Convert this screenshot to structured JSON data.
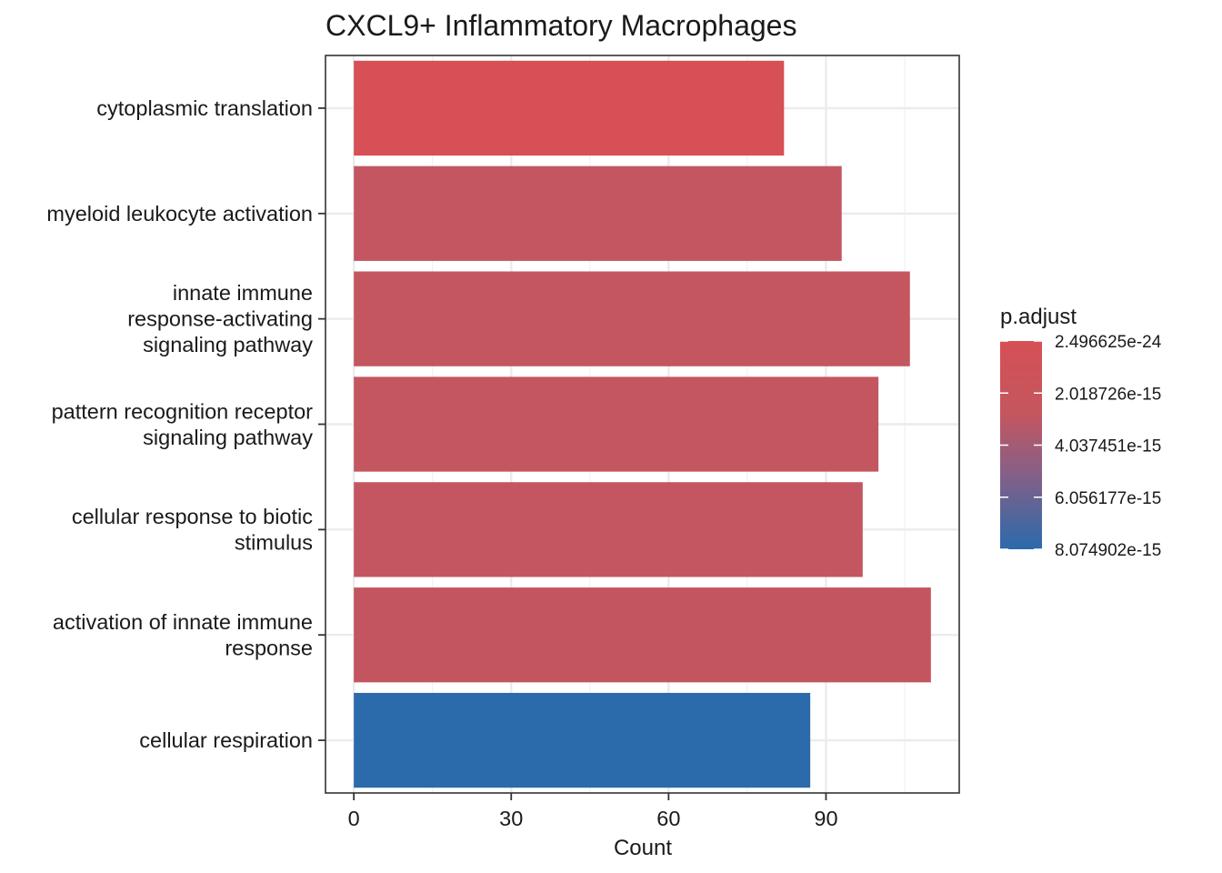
{
  "chart_data": {
    "type": "bar",
    "orientation": "horizontal",
    "title": "CXCL9+ Inflammatory Macrophages",
    "xlabel": "Count",
    "ylabel": "",
    "xlim": [
      -5.4,
      115.4
    ],
    "xticks": [
      0,
      30,
      60,
      90
    ],
    "grid": true,
    "categories": [
      [
        "cytoplasmic translation"
      ],
      [
        "myeloid leukocyte activation"
      ],
      [
        "innate immune",
        "response-activating",
        "signaling pathway"
      ],
      [
        "pattern recognition receptor",
        "signaling pathway"
      ],
      [
        "cellular response to biotic",
        "stimulus"
      ],
      [
        "activation of innate immune",
        "response"
      ],
      [
        "cellular respiration"
      ]
    ],
    "values": [
      82,
      93,
      106,
      100,
      97,
      110,
      87
    ],
    "colors": [
      "#D65055",
      "#C45662",
      "#C4565F",
      "#C4565F",
      "#C45662",
      "#C35560",
      "#2B6AAB"
    ],
    "legend": {
      "title": "p.adjust",
      "position": "right",
      "labels": [
        "2.496625e-24",
        "2.018726e-15",
        "4.037451e-15",
        "6.056177e-15",
        "8.074902e-15"
      ],
      "gradient_top": "#D65055",
      "gradient_mid": "#8A5F85",
      "gradient_bottom": "#2B6AAB"
    }
  }
}
